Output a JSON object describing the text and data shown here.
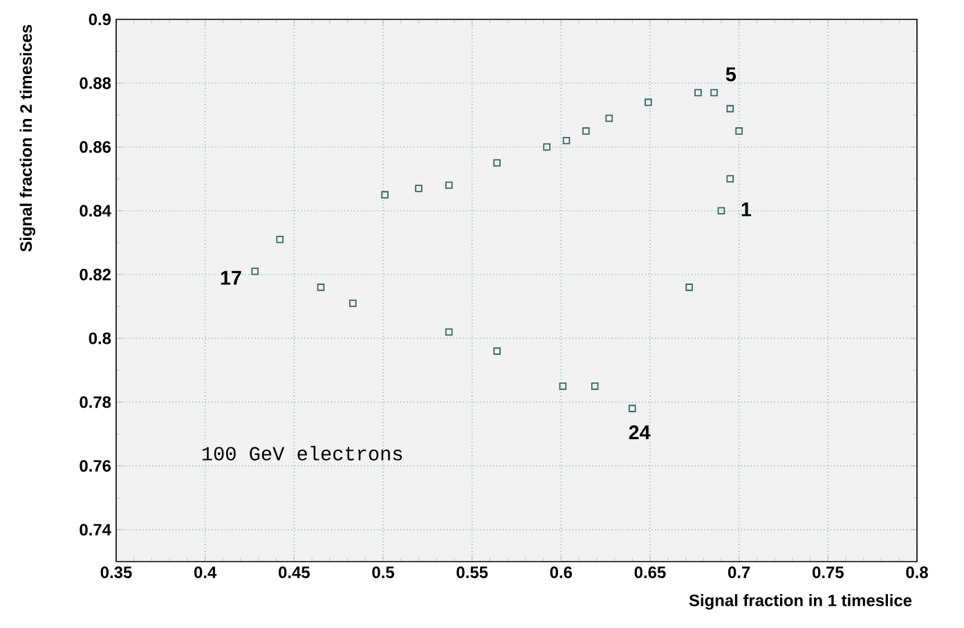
{
  "chart_data": {
    "type": "scatter",
    "xlabel": "Signal fraction in 1 timeslice",
    "ylabel": "Signal fraction in 2 timesices",
    "x": [
      0.7,
      0.695,
      0.686,
      0.677,
      0.649,
      0.627,
      0.614,
      0.603,
      0.592,
      0.564,
      0.537,
      0.52,
      0.501,
      0.442,
      0.428,
      0.465,
      0.483,
      0.537,
      0.564,
      0.601,
      0.619,
      0.64,
      0.672,
      0.69,
      0.695
    ],
    "values": [
      0.865,
      0.872,
      0.877,
      0.877,
      0.874,
      0.869,
      0.865,
      0.862,
      0.86,
      0.855,
      0.848,
      0.847,
      0.845,
      0.831,
      0.821,
      0.816,
      0.811,
      0.802,
      0.796,
      0.785,
      0.785,
      0.778,
      0.816,
      0.84,
      0.85
    ],
    "color": "#336666",
    "marker": "square",
    "grid": true,
    "xlim": [
      0.35,
      0.8
    ],
    "ylim": [
      0.73,
      0.9
    ],
    "xticks": [
      0.35,
      0.4,
      0.45,
      0.5,
      0.55,
      0.6,
      0.65,
      0.7,
      0.75,
      0.8
    ],
    "yticks": [
      0.74,
      0.76,
      0.78,
      0.8,
      0.82,
      0.84,
      0.86,
      0.88,
      0.9
    ],
    "annotations": [
      {
        "text": "5",
        "x": 0.686,
        "y": 0.877
      },
      {
        "text": "1",
        "x": 0.69,
        "y": 0.84
      },
      {
        "text": "17",
        "x": 0.428,
        "y": 0.821
      },
      {
        "text": "24",
        "x": 0.64,
        "y": 0.778
      },
      "100 GeV electrons"
    ]
  }
}
